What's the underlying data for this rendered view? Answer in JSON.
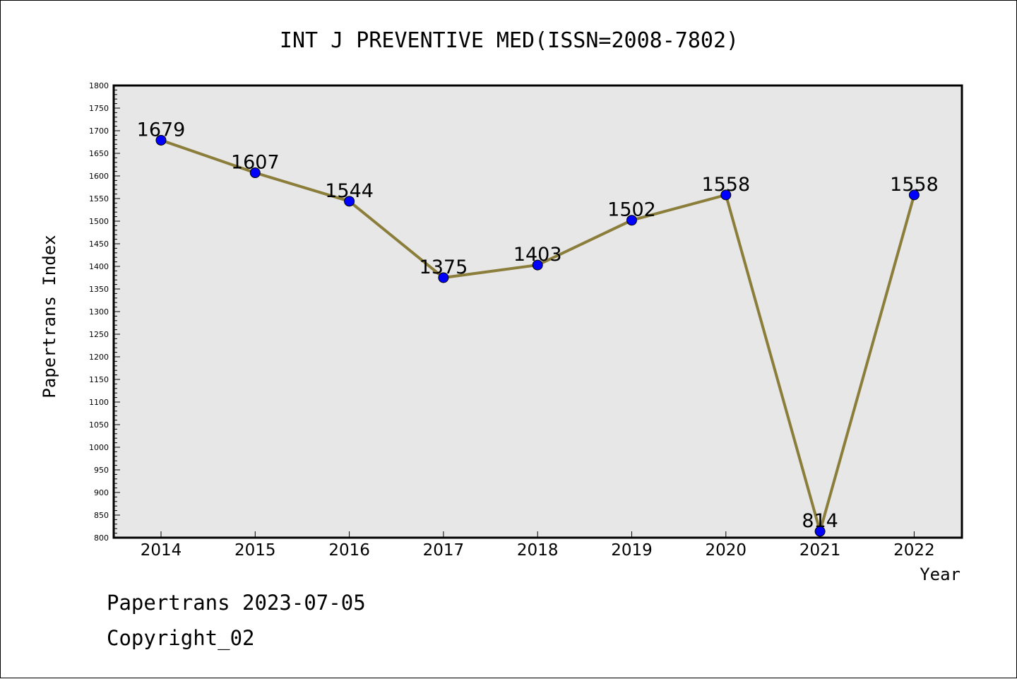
{
  "chart_data": {
    "type": "line",
    "title": "INT J PREVENTIVE MED(ISSN=2008-7802)",
    "xlabel": "Year",
    "ylabel": "Papertrans Index",
    "categories": [
      "2014",
      "2015",
      "2016",
      "2017",
      "2018",
      "2019",
      "2020",
      "2021",
      "2022"
    ],
    "values": [
      1679,
      1607,
      1544,
      1375,
      1403,
      1502,
      1558,
      814,
      1558
    ],
    "data_labels": [
      "1679",
      "1607",
      "1544",
      "1375",
      "1403",
      "1502",
      "1558",
      "814",
      "1558"
    ],
    "ylim": [
      800,
      1800
    ],
    "yticks": [
      "800",
      "850",
      "900",
      "950",
      "1000",
      "1050",
      "1100",
      "1150",
      "1200",
      "1250",
      "1300",
      "1350",
      "1400",
      "1450",
      "1500",
      "1550",
      "1600",
      "1650",
      "1700",
      "1750",
      "1800"
    ],
    "grid": false,
    "colors": {
      "line": "#8b7d3a",
      "marker": "#0000ff",
      "plot_background": "#e7e7e7"
    }
  },
  "footer": {
    "source": "Papertrans 2023-07-05",
    "copyright": "Copyright_02"
  }
}
